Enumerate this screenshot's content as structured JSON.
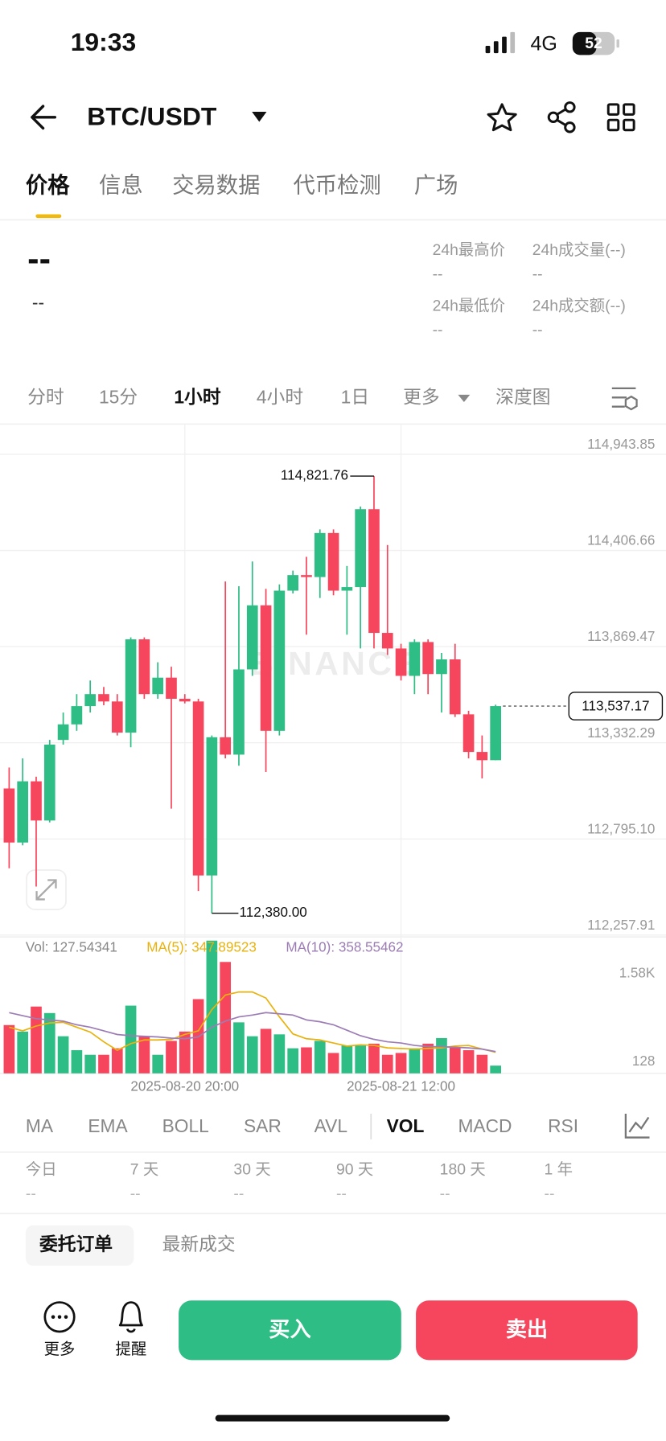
{
  "status_bar": {
    "time": "19:33",
    "network": "4G",
    "battery": "52"
  },
  "header": {
    "pair": "BTC/USDT"
  },
  "tabs": [
    "价格",
    "信息",
    "交易数据",
    "代币检测",
    "广场"
  ],
  "active_tab": 0,
  "price": {
    "last": "--",
    "change": "--"
  },
  "stats": [
    {
      "label": "24h最高价",
      "value": "--"
    },
    {
      "label": "24h成交量(--)",
      "value": "--"
    },
    {
      "label": "24h最低价",
      "value": "--"
    },
    {
      "label": "24h成交额(--)",
      "value": "--"
    }
  ],
  "intervals": [
    "分时",
    "15分",
    "1小时",
    "4小时",
    "1日",
    "更多",
    "深度图"
  ],
  "active_interval": 2,
  "chart_data": [
    {
      "type": "candlestick",
      "categories": [
        null,
        null,
        null,
        null,
        null,
        null,
        null,
        null,
        null,
        null,
        null,
        null,
        null,
        "2025-08-20 20:00",
        null,
        null,
        null,
        null,
        null,
        null,
        null,
        null,
        null,
        null,
        null,
        null,
        null,
        null,
        null,
        "2025-08-21 12:00",
        null,
        null,
        null,
        null,
        null,
        null,
        null
      ],
      "open": [
        113077,
        112775,
        113117,
        112898,
        113348,
        113435,
        113537,
        113604,
        113563,
        113389,
        113910,
        113604,
        113696,
        113578,
        113563,
        112591,
        113363,
        113266,
        113742,
        114100,
        113399,
        114182,
        114269,
        114258,
        114504,
        114182,
        114202,
        114637,
        113946,
        113859,
        113706,
        113895,
        113716,
        113798,
        113491,
        113281,
        113235
      ],
      "high": [
        113194,
        113245,
        113143,
        113348,
        113501,
        113604,
        113680,
        113644,
        113604,
        113921,
        113921,
        113782,
        113757,
        113604,
        113578,
        113373,
        114233,
        114207,
        114345,
        114192,
        114217,
        114294,
        114371,
        114524,
        114524,
        114320,
        114652,
        114821.76,
        114437,
        113885,
        113910,
        113910,
        113834,
        113885,
        113511,
        113373,
        113545
      ],
      "low": [
        112631,
        112759,
        112529,
        112887,
        113322,
        113399,
        113501,
        113542,
        113373,
        113307,
        113578,
        113578,
        112964,
        113552,
        112504,
        112380.0,
        113245,
        113204,
        113706,
        113169,
        113373,
        114166,
        113936,
        114141,
        114156,
        113936,
        113859,
        113859,
        113823,
        113680,
        113604,
        113604,
        113501,
        113476,
        113245,
        113133,
        113235
      ],
      "close": [
        112775,
        113117,
        112898,
        113322,
        113435,
        113537,
        113604,
        113563,
        113389,
        113910,
        113604,
        113696,
        113578,
        113563,
        112591,
        113363,
        113266,
        113742,
        114100,
        113399,
        114182,
        114269,
        114258,
        114504,
        114182,
        114202,
        114637,
        113946,
        113859,
        113706,
        113895,
        113716,
        113798,
        113491,
        113281,
        113235,
        113537.17
      ],
      "up_color": "#2ebd85",
      "down_color": "#f6465d",
      "ylim": [
        112247.7,
        115112.7
      ],
      "yticks": [
        {
          "value": 114943.85,
          "label": "114,943.85"
        },
        {
          "value": 114406.66,
          "label": "114,406.66"
        },
        {
          "value": 113869.47,
          "label": "113,869.47"
        },
        {
          "value": 113332.29,
          "label": "113,332.29"
        },
        {
          "value": 112795.1,
          "label": "112,795.10"
        },
        {
          "value": 112257.91,
          "label": "112,257.91"
        }
      ],
      "high_label": "114,821.76",
      "low_label": "112,380.00",
      "last_label": "113,537.17",
      "watermark": "BINANCE"
    },
    {
      "type": "bar",
      "legend": "Vol: 127.54341",
      "values": [
        795,
        688,
        1100,
        993,
        611,
        382,
        306,
        306,
        413,
        1115,
        611,
        306,
        535,
        688,
        1222,
        2185,
        1834,
        840,
        611,
        733,
        642,
        413,
        428,
        535,
        336,
        458,
        458,
        489,
        306,
        336,
        413,
        489,
        581,
        428,
        382,
        306,
        127.54341
      ],
      "ylim": [
        0,
        2216
      ],
      "yticks": [
        {
          "value": 1580,
          "label": "1.58K"
        },
        128
      ],
      "series": [
        {
          "name": "MA(5): 347.89523",
          "color": "#e9b20c",
          "values": [
            760,
            700,
            780,
            830,
            840,
            760,
            680,
            520,
            380,
            490,
            550,
            550,
            560,
            640,
            700,
            1050,
            1290,
            1340,
            1340,
            1240,
            930,
            650,
            570,
            550,
            500,
            450,
            470,
            460,
            420,
            410,
            400,
            410,
            420,
            450,
            460,
            400,
            347.89523
          ]
        },
        {
          "name": "MA(10): 358.55462",
          "color": "#9c7cb5",
          "values": [
            1000,
            950,
            900,
            880,
            860,
            800,
            760,
            700,
            640,
            620,
            610,
            600,
            580,
            570,
            600,
            760,
            860,
            930,
            960,
            1000,
            980,
            960,
            880,
            850,
            800,
            710,
            620,
            560,
            520,
            500,
            460,
            440,
            440,
            430,
            420,
            400,
            358.55462
          ]
        }
      ]
    }
  ],
  "indicators": [
    "MA",
    "EMA",
    "BOLL",
    "SAR",
    "AVL",
    "VOL",
    "MACD",
    "RSI"
  ],
  "active_indicator": 5,
  "periods": [
    {
      "label": "今日",
      "value": "--"
    },
    {
      "label": "7 天",
      "value": "--"
    },
    {
      "label": "30 天",
      "value": "--"
    },
    {
      "label": "90 天",
      "value": "--"
    },
    {
      "label": "180 天",
      "value": "--"
    },
    {
      "label": "1 年",
      "value": "--"
    }
  ],
  "order_tabs": [
    "委托订单",
    "最新成交"
  ],
  "active_order_tab": 0,
  "actions": [
    "更多",
    "提醒"
  ],
  "buy": "买入",
  "sell": "卖出"
}
